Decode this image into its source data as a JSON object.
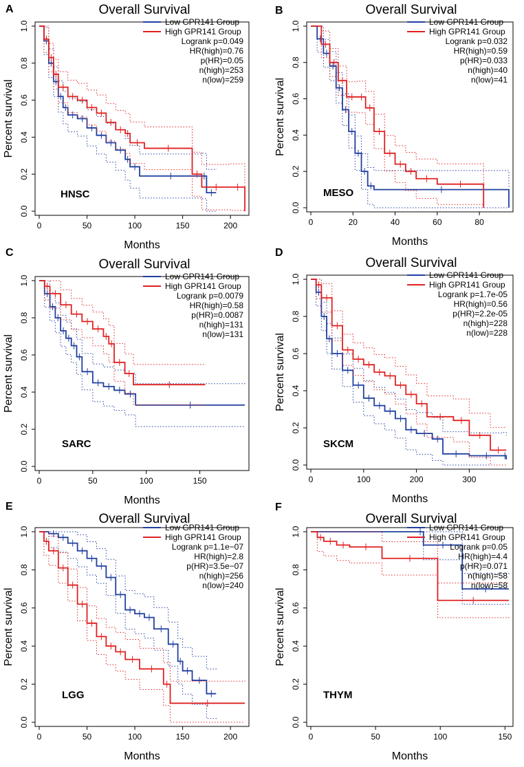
{
  "figure": {
    "colors": {
      "low": "#1f3f9f",
      "high": "#e02020",
      "axis": "#000000"
    }
  },
  "chart_data": [
    {
      "panel_letter": "A",
      "type": "line",
      "title": "Overall Survival",
      "cancer": "HNSC",
      "xlabel": "Months",
      "ylabel": "Percent survival",
      "xlim": [
        0,
        215
      ],
      "ylim": [
        0,
        1
      ],
      "xticks": [
        0,
        50,
        100,
        150,
        200
      ],
      "yticks": [
        0.0,
        0.2,
        0.4,
        0.6,
        0.8,
        1.0
      ],
      "legend": [
        "Low GPR141 Group",
        "High GPR141 Group"
      ],
      "stats": [
        "Logrank p=0.049",
        "HR(high)=0.76",
        "p(HR)=0.05",
        "n(high)=253",
        "n(low)=259"
      ],
      "series": [
        {
          "name": "Low GPR141 Group",
          "x": [
            0,
            5,
            10,
            15,
            20,
            25,
            30,
            40,
            50,
            60,
            70,
            80,
            90,
            95,
            105,
            170,
            175,
            185
          ],
          "y": [
            1,
            0.92,
            0.8,
            0.7,
            0.62,
            0.56,
            0.52,
            0.5,
            0.45,
            0.41,
            0.37,
            0.33,
            0.28,
            0.24,
            0.19,
            0.19,
            0.1,
            0.1
          ]
        },
        {
          "name": "High GPR141 Group",
          "x": [
            0,
            5,
            10,
            15,
            20,
            30,
            40,
            50,
            60,
            70,
            80,
            90,
            95,
            110,
            160,
            170,
            200,
            215
          ],
          "y": [
            1,
            0.93,
            0.83,
            0.74,
            0.67,
            0.62,
            0.6,
            0.56,
            0.53,
            0.48,
            0.44,
            0.42,
            0.37,
            0.34,
            0.2,
            0.13,
            0.13,
            0
          ]
        }
      ]
    },
    {
      "panel_letter": "B",
      "type": "line",
      "title": "Overall Survival",
      "cancer": "MESO",
      "xlabel": "Months",
      "ylabel": "Percent survival",
      "xlim": [
        0,
        94
      ],
      "ylim": [
        0,
        1
      ],
      "xticks": [
        0,
        20,
        40,
        60,
        80
      ],
      "yticks": [
        0.0,
        0.2,
        0.4,
        0.6,
        0.8,
        1.0
      ],
      "legend": [
        "Low GPR141 Group",
        "High GPR141 Group"
      ],
      "stats": [
        "Logrank p=0.032",
        "HR(high)=0.59",
        "p(HR)=0.033",
        "n(high)=40",
        "n(low)=41"
      ],
      "series": [
        {
          "name": "Low GPR141 Group",
          "x": [
            0,
            3,
            6,
            9,
            12,
            15,
            18,
            21,
            24,
            27,
            30,
            94
          ],
          "y": [
            1,
            0.93,
            0.85,
            0.78,
            0.66,
            0.54,
            0.42,
            0.3,
            0.2,
            0.12,
            0.1,
            0
          ]
        },
        {
          "name": "High GPR141 Group",
          "x": [
            0,
            5,
            9,
            13,
            17,
            22,
            26,
            30,
            35,
            40,
            45,
            50,
            60,
            82
          ],
          "y": [
            1,
            0.9,
            0.8,
            0.7,
            0.61,
            0.61,
            0.55,
            0.42,
            0.3,
            0.24,
            0.2,
            0.16,
            0.13,
            0
          ]
        }
      ]
    },
    {
      "panel_letter": "C",
      "type": "line",
      "title": "Overall Survival",
      "cancer": "SARC",
      "xlabel": "Months",
      "ylabel": "Percent survival",
      "xlim": [
        0,
        192
      ],
      "ylim": [
        0,
        1
      ],
      "xticks": [
        0,
        50,
        100,
        150
      ],
      "yticks": [
        0.0,
        0.2,
        0.4,
        0.6,
        0.8,
        1.0
      ],
      "legend": [
        "Low GPR141 Group",
        "High GPR141 Group"
      ],
      "stats": [
        "Logrank p=0.0079",
        "HR(high)=0.58",
        "p(HR)=0.0087",
        "n(high)=131",
        "n(low)=131"
      ],
      "series": [
        {
          "name": "Low GPR141 Group",
          "x": [
            0,
            5,
            10,
            15,
            20,
            25,
            30,
            35,
            40,
            50,
            60,
            70,
            80,
            90,
            192
          ],
          "y": [
            1,
            0.93,
            0.86,
            0.8,
            0.73,
            0.69,
            0.65,
            0.59,
            0.51,
            0.45,
            0.43,
            0.41,
            0.39,
            0.33,
            0.33
          ]
        },
        {
          "name": "High GPR141 Group",
          "x": [
            0,
            5,
            10,
            20,
            30,
            40,
            50,
            60,
            65,
            70,
            80,
            88,
            155
          ],
          "y": [
            1,
            0.97,
            0.93,
            0.87,
            0.82,
            0.78,
            0.74,
            0.7,
            0.66,
            0.56,
            0.5,
            0.44,
            0.44
          ]
        }
      ]
    },
    {
      "panel_letter": "D",
      "type": "line",
      "title": "Overall Survival",
      "cancer": "SKCM",
      "xlabel": "Months",
      "ylabel": "Percent survival",
      "xlim": [
        0,
        375
      ],
      "ylim": [
        0,
        1
      ],
      "xticks": [
        0,
        100,
        200,
        300
      ],
      "yticks": [
        0.0,
        0.2,
        0.4,
        0.6,
        0.8,
        1.0
      ],
      "legend": [
        "Low GPR141 Group",
        "High GPR141 Group"
      ],
      "stats": [
        "Logrank p=1.7e-05",
        "HR(high)=0.56",
        "p(HR)=2.2e-05",
        "n(high)=228",
        "n(low)=228"
      ],
      "series": [
        {
          "name": "Low GPR141 Group",
          "x": [
            0,
            10,
            20,
            30,
            40,
            60,
            80,
            100,
            120,
            140,
            160,
            180,
            200,
            230,
            250,
            300,
            365,
            370
          ],
          "y": [
            1,
            0.93,
            0.8,
            0.68,
            0.6,
            0.51,
            0.43,
            0.36,
            0.32,
            0.29,
            0.25,
            0.19,
            0.17,
            0.14,
            0.06,
            0.05,
            0.05,
            0.03
          ]
        },
        {
          "name": "High GPR141 Group",
          "x": [
            0,
            10,
            20,
            40,
            60,
            80,
            100,
            120,
            140,
            160,
            180,
            200,
            220,
            270,
            300,
            340,
            370
          ],
          "y": [
            1,
            0.97,
            0.9,
            0.75,
            0.62,
            0.57,
            0.54,
            0.5,
            0.48,
            0.43,
            0.38,
            0.33,
            0.26,
            0.24,
            0.16,
            0.08,
            0.08
          ]
        }
      ]
    },
    {
      "panel_letter": "E",
      "type": "line",
      "title": "Overall Survival",
      "cancer": "LGG",
      "xlabel": "Months",
      "ylabel": "Percent survival",
      "xlim": [
        0,
        215
      ],
      "ylim": [
        0,
        1
      ],
      "xticks": [
        0,
        50,
        100,
        150,
        200
      ],
      "yticks": [
        0.0,
        0.2,
        0.4,
        0.6,
        0.8,
        1.0
      ],
      "legend": [
        "Low GPR141 Group",
        "High GPR141 Group"
      ],
      "stats": [
        "Logrank p=1.1e−07",
        "HR(high)=2.8",
        "p(HR)=3.5e−07",
        "n(high)=256",
        "n(low)=240"
      ],
      "series": [
        {
          "name": "Low GPR141 Group",
          "x": [
            0,
            10,
            20,
            30,
            40,
            50,
            60,
            70,
            80,
            90,
            100,
            110,
            120,
            135,
            145,
            150,
            160,
            175,
            185
          ],
          "y": [
            1,
            0.99,
            0.97,
            0.94,
            0.9,
            0.86,
            0.82,
            0.76,
            0.67,
            0.59,
            0.57,
            0.55,
            0.49,
            0.41,
            0.32,
            0.27,
            0.22,
            0.15,
            0.15
          ]
        },
        {
          "name": "High GPR141 Group",
          "x": [
            0,
            5,
            10,
            20,
            30,
            40,
            50,
            60,
            70,
            80,
            90,
            105,
            130,
            137,
            215
          ],
          "y": [
            1,
            0.95,
            0.9,
            0.81,
            0.72,
            0.62,
            0.52,
            0.45,
            0.4,
            0.37,
            0.33,
            0.28,
            0.2,
            0.1,
            0.1
          ]
        }
      ]
    },
    {
      "panel_letter": "F",
      "type": "line",
      "title": "Overall Survival",
      "cancer": "THYM",
      "xlabel": "Months",
      "ylabel": "Percent survival",
      "xlim": [
        0,
        153
      ],
      "ylim": [
        0,
        1
      ],
      "xticks": [
        0,
        50,
        100,
        150
      ],
      "yticks": [
        0.0,
        0.2,
        0.4,
        0.6,
        0.8,
        1.0
      ],
      "legend": [
        "Low GPR141 Group",
        "High GPR141 Group"
      ],
      "stats": [
        "Logrank p=0.05",
        "HR(high)=4.4",
        "p(HR)=0.071",
        "n(high)=58",
        "n(low)=58"
      ],
      "series": [
        {
          "name": "Low GPR141 Group",
          "x": [
            0,
            82,
            87,
            117,
            153
          ],
          "y": [
            1,
            1,
            0.93,
            0.7,
            0.7
          ]
        },
        {
          "name": "High GPR141 Group",
          "x": [
            0,
            5,
            10,
            20,
            30,
            55,
            98,
            153
          ],
          "y": [
            1,
            0.97,
            0.95,
            0.93,
            0.92,
            0.86,
            0.64,
            0.64
          ]
        }
      ]
    }
  ]
}
